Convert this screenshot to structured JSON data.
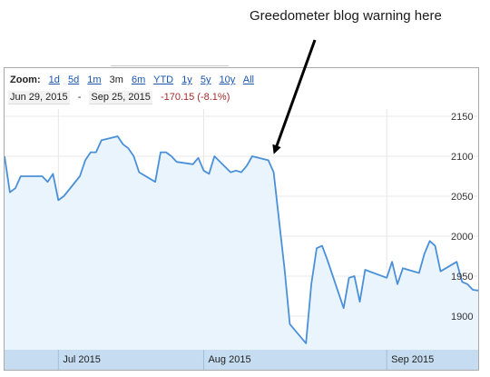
{
  "annotation": "Greedometer blog warning here",
  "zoom": {
    "label": "Zoom:",
    "options": [
      "1d",
      "5d",
      "1m",
      "3m",
      "6m",
      "YTD",
      "1y",
      "5y",
      "10y",
      "All"
    ],
    "selected": "3m"
  },
  "range": {
    "start": "Jun 29, 2015",
    "separator": "-",
    "end": "Sep 25, 2015",
    "change": "-170.15 (-8.1%)"
  },
  "colors": {
    "line": "#4a90d9",
    "fill": "#eaf4fc",
    "axis_band": "#c6dcf0",
    "change": "#a52a2a"
  },
  "chart_data": {
    "type": "area",
    "title": "",
    "xlabel": "",
    "ylabel": "",
    "ylim": [
      1850,
      2160
    ],
    "y_ticks": [
      1900,
      1950,
      2000,
      2050,
      2100,
      2150
    ],
    "x_tick_labels": [
      "Jul 2015",
      "Aug 2015",
      "Sep 2015"
    ],
    "x_tick_dates": [
      "2015-07-09",
      "2015-08-05",
      "2015-09-08"
    ],
    "grid": true,
    "series": [
      {
        "x": [
          "2015-06-29",
          "2015-06-30",
          "2015-07-01",
          "2015-07-02",
          "2015-07-06",
          "2015-07-07",
          "2015-07-08",
          "2015-07-09",
          "2015-07-10",
          "2015-07-13",
          "2015-07-14",
          "2015-07-15",
          "2015-07-16",
          "2015-07-17",
          "2015-07-20",
          "2015-07-21",
          "2015-07-22",
          "2015-07-23",
          "2015-07-24",
          "2015-07-27",
          "2015-07-28",
          "2015-07-29",
          "2015-07-30",
          "2015-07-31",
          "2015-08-03",
          "2015-08-04",
          "2015-08-05",
          "2015-08-06",
          "2015-08-07",
          "2015-08-10",
          "2015-08-11",
          "2015-08-12",
          "2015-08-13",
          "2015-08-14",
          "2015-08-17",
          "2015-08-18",
          "2015-08-19",
          "2015-08-20",
          "2015-08-21",
          "2015-08-24",
          "2015-08-25",
          "2015-08-26",
          "2015-08-27",
          "2015-08-28",
          "2015-08-31",
          "2015-09-01",
          "2015-09-02",
          "2015-09-03",
          "2015-09-04",
          "2015-09-08",
          "2015-09-09",
          "2015-09-10",
          "2015-09-11",
          "2015-09-14",
          "2015-09-15",
          "2015-09-16",
          "2015-09-17",
          "2015-09-18",
          "2015-09-21",
          "2015-09-22",
          "2015-09-23",
          "2015-09-24",
          "2015-09-25"
        ],
        "values": [
          2100,
          2055,
          2060,
          2075,
          2075,
          2068,
          2078,
          2045,
          2050,
          2075,
          2095,
          2105,
          2105,
          2120,
          2125,
          2115,
          2110,
          2100,
          2080,
          2068,
          2105,
          2105,
          2100,
          2093,
          2090,
          2098,
          2082,
          2078,
          2100,
          2080,
          2082,
          2080,
          2088,
          2100,
          2095,
          2080,
          2020,
          1960,
          1890,
          1866,
          1940,
          1985,
          1988,
          1970,
          1910,
          1948,
          1950,
          1918,
          1958,
          1948,
          1968,
          1940,
          1960,
          1954,
          1978,
          1994,
          1988,
          1956,
          1968,
          1943,
          1940,
          1933,
          1932
        ]
      }
    ]
  }
}
